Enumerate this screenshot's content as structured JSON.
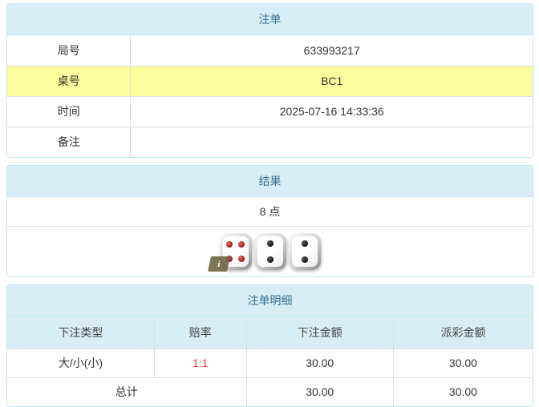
{
  "accent": {
    "header_bg": "#d9edf7",
    "header_text": "#31708f",
    "panel_border": "#bce8f1",
    "cell_border": "#dddddd",
    "highlight_row_bg": "#fdfd9e",
    "odds_color": "#e63c3c"
  },
  "bet_panel": {
    "title": "注单",
    "rows": [
      {
        "label": "局号",
        "value": "633993217",
        "highlight": false
      },
      {
        "label": "桌号",
        "value": "BC1",
        "highlight": true
      },
      {
        "label": "时间",
        "value": "2025-07-16 14:33:36",
        "highlight": false
      },
      {
        "label": "备注",
        "value": "",
        "highlight": false
      }
    ]
  },
  "result_panel": {
    "title": "结果",
    "points": "8 点",
    "dice": [
      {
        "value": 4,
        "color": "red"
      },
      {
        "value": 2,
        "color": "black"
      },
      {
        "value": 2,
        "color": "black"
      }
    ],
    "info_icon": "i"
  },
  "detail_panel": {
    "title": "注单明细",
    "columns": [
      "下注类型",
      "赔率",
      "下注金额",
      "派彩金额"
    ],
    "rows": [
      {
        "bet_type": "大/小(小)",
        "odds": "1:1",
        "bet_amount": "30.00",
        "payout_amount": "30.00"
      }
    ],
    "total": {
      "label": "总计",
      "bet_amount": "30.00",
      "payout_amount": "30.00"
    }
  }
}
